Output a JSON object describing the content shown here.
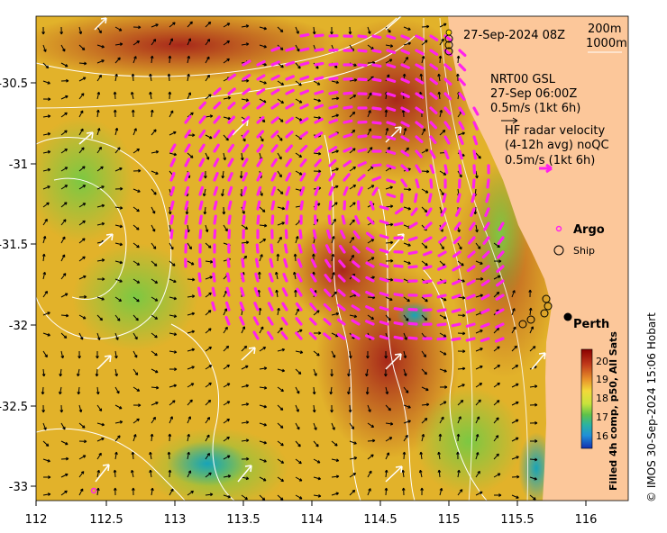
{
  "map": {
    "timestamp": "27-Sep-2024 08Z",
    "depth_labels": [
      "200m",
      "1000m"
    ],
    "gsl": {
      "line1": "NRT00 GSL",
      "line2": "27-Sep 06:00Z",
      "line3": "0.5m/s (1kt 6h)"
    },
    "hf": {
      "line1": "HF radar velocity",
      "line2": "(4-12h avg) noQC",
      "line3": "0.5m/s (1kt 6h)"
    },
    "legend": {
      "argo": "Argo",
      "ship": "Ship"
    },
    "city": "Perth",
    "colorbar": {
      "title": "Filled 4h comp, p50, All Sats",
      "ticks": [
        20,
        19,
        18,
        17,
        16
      ],
      "colors": [
        "#8b0000",
        "#c0391b",
        "#e8902a",
        "#f3d93a",
        "#c8e33c",
        "#5fc24a",
        "#2bb3a0",
        "#1f8fd8",
        "#1330b0"
      ]
    },
    "credit": "© IMOS 30-Sep-2024 15:06 Hobart",
    "x_ticks": [
      "112",
      "112.5",
      "113",
      "113.5",
      "114",
      "114.5",
      "115",
      "115.5",
      "116"
    ],
    "y_ticks": [
      "-30.5",
      "-31",
      "-31.5",
      "-32",
      "-32.5",
      "-33"
    ],
    "colors": {
      "land": "#fcc79a",
      "hf_arrow": "#ff22ee",
      "sst_warm": "#b33a1c",
      "sst_mid": "#e2b22a",
      "sst_cool": "#7ec945"
    }
  }
}
